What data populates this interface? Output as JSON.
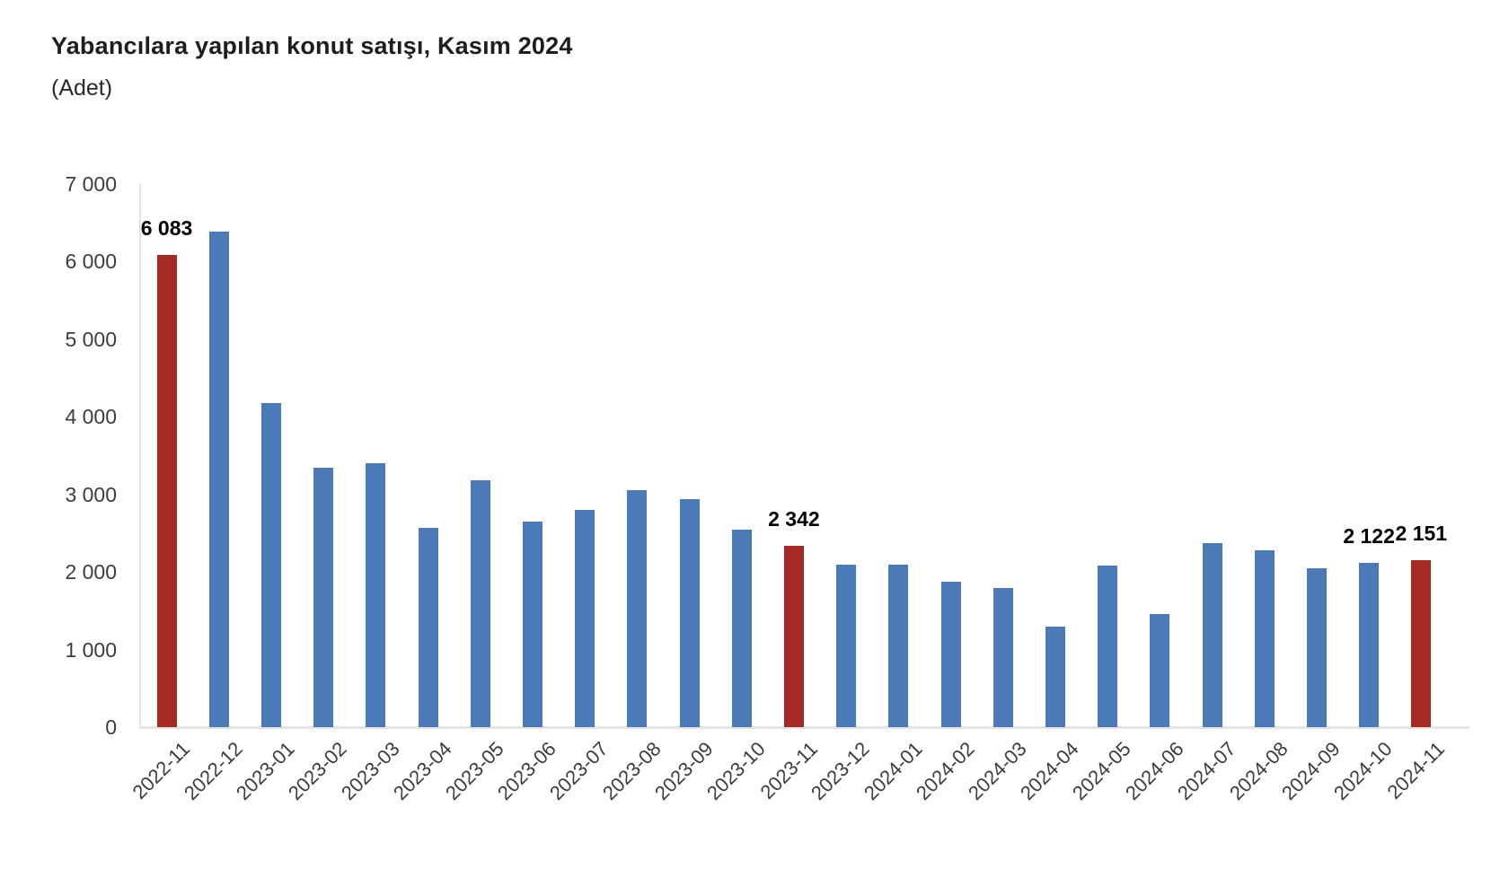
{
  "title": "Yabancılara yapılan konut satışı, Kasım 2024",
  "subtitle": "(Adet)",
  "colors": {
    "bar_default": "#4a7bb8",
    "bar_highlight": "#a32b23",
    "axis_line": "#e4e4e4",
    "axis_text": "#3d3d3d",
    "title_text": "#1e1e1e",
    "data_label_text": "#000000",
    "background": "#ffffff"
  },
  "chart_data": {
    "type": "bar",
    "title": "Yabancılara yapılan konut satışı, Kasım 2024",
    "subtitle": "(Adet)",
    "xlabel": "",
    "ylabel": "",
    "ylim": [
      0,
      7000
    ],
    "ytick_step": 1000,
    "ytick_labels": [
      "0",
      "1 000",
      "2 000",
      "3 000",
      "4 000",
      "5 000",
      "6 000",
      "7 000"
    ],
    "grid": false,
    "legend": "none",
    "categories": [
      "2022-11",
      "2022-12",
      "2023-01",
      "2023-02",
      "2023-03",
      "2023-04",
      "2023-05",
      "2023-06",
      "2023-07",
      "2023-08",
      "2023-09",
      "2023-10",
      "2023-11",
      "2023-12",
      "2024-01",
      "2024-02",
      "2024-03",
      "2024-04",
      "2024-05",
      "2024-06",
      "2024-07",
      "2024-08",
      "2024-09",
      "2024-10",
      "2024-11"
    ],
    "values": [
      6083,
      6386,
      4177,
      3350,
      3405,
      2574,
      3179,
      2645,
      2801,
      3058,
      2940,
      2544,
      2342,
      2093,
      2091,
      1873,
      1789,
      1294,
      2087,
      1455,
      2372,
      2281,
      2046,
      2122,
      2151
    ],
    "highlighted_categories": [
      "2022-11",
      "2023-11",
      "2024-11"
    ],
    "data_labels": {
      "2022-11": "6 083",
      "2023-11": "2 342",
      "2024-10": "2 122",
      "2024-11": "2 151"
    }
  }
}
